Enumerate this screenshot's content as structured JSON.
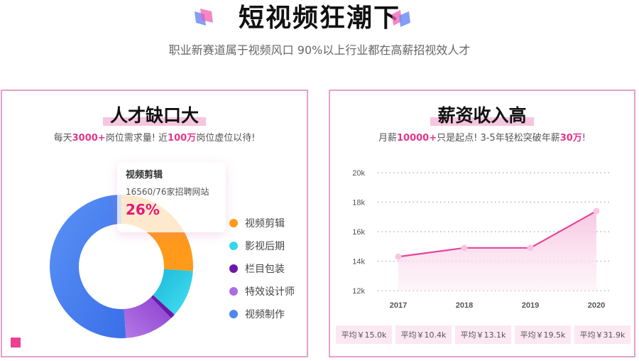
{
  "header": {
    "title": "短视频狂潮下",
    "subtitle": "职业新赛道属于视频风口  90%以上行业都在高薪招视效人才",
    "decor_icons": [
      "double-parallelogram-icon",
      "double-parallelogram-icon"
    ]
  },
  "left_panel": {
    "title": "人才缺口大",
    "subtitle_parts": [
      "每天",
      "3000+",
      "岗位需求量!  近",
      "100万",
      "岗位虚位以待!"
    ],
    "tooltip": {
      "title": "视频剪辑",
      "line": "16560/76家招聘网站",
      "percent": "26%"
    },
    "legend": [
      {
        "label": "视频剪辑",
        "color": "#ff9a1a"
      },
      {
        "label": "影视后期",
        "color": "#34d6ec"
      },
      {
        "label": "栏目包装",
        "color": "#6a1aa8"
      },
      {
        "label": "特效设计师",
        "color": "#a86ee0"
      },
      {
        "label": "视频制作",
        "color": "#4f86f0"
      }
    ]
  },
  "right_panel": {
    "title": "薪资收入高",
    "subtitle_parts": [
      "月薪",
      "10000+",
      "只是起点!  3-5年轻松突破年薪",
      "30万",
      "!"
    ],
    "averages": [
      "平均￥15.0k",
      "平均￥10.4k",
      "平均￥13.1k",
      "平均￥19.5k",
      "平均￥31.9k"
    ]
  },
  "chart_data": [
    {
      "type": "pie",
      "subtype": "donut",
      "title": "人才缺口大",
      "categories": [
        "视频剪辑",
        "影视后期",
        "栏目包装",
        "特效设计师",
        "视频制作"
      ],
      "values": [
        26,
        10.7,
        1.1,
        11.2,
        51
      ],
      "colors": [
        "#ff9a1a",
        "#34d6ec",
        "#6a1aa8",
        "#a86ee0",
        "#4f86f0"
      ],
      "legend_position": "right",
      "annotations": [
        {
          "category": "视频剪辑",
          "text": "16560/76家招聘网站",
          "value": "26%"
        }
      ]
    },
    {
      "type": "area",
      "title": "薪资收入高",
      "x": [
        "2017",
        "2018",
        "2019",
        "2020"
      ],
      "values": [
        14.3,
        14.9,
        14.9,
        17.4
      ],
      "unit": "k",
      "yticks": [
        "12k",
        "14k",
        "16k",
        "18k",
        "20k"
      ],
      "ylim": [
        12,
        20
      ],
      "grid": "horizontal dotted",
      "line_color": "#e8449a",
      "fill_color": "#fbd6ea",
      "xlabel": "",
      "ylabel": ""
    }
  ]
}
